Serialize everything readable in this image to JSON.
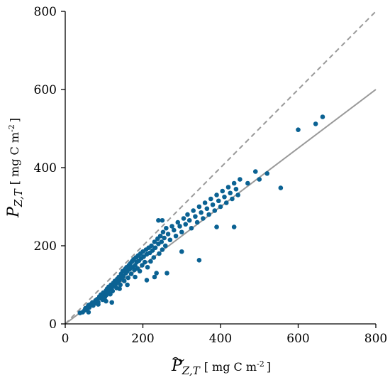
{
  "chart_data": {
    "type": "scatter",
    "title": "",
    "xlabel": {
      "symbol": "P",
      "subscript": "Z,T",
      "unit_prefix": "[ mg C m",
      "unit_sup": "-2",
      "unit_suffix": "]"
    },
    "ylabel": {
      "symbol": "P",
      "subscript": "Z,T",
      "unit_prefix": "[ mg C m",
      "unit_sup": "-2",
      "unit_suffix": "]"
    },
    "xlim": [
      0,
      800
    ],
    "ylim": [
      0,
      800
    ],
    "xticks": [
      "0",
      "200",
      "400",
      "600",
      "800"
    ],
    "yticks": [
      "0",
      "200",
      "400",
      "600",
      "800"
    ],
    "grid": false,
    "colors": {
      "points": "#0b6293",
      "one_to_one": "#999999",
      "fit": "#999999",
      "axis": "#000000"
    },
    "reference_lines": [
      {
        "kind": "one-to-one",
        "style": "dashed",
        "x": [
          0,
          800
        ],
        "y": [
          0,
          800
        ]
      },
      {
        "kind": "regression",
        "style": "solid",
        "x": [
          0,
          800
        ],
        "y": [
          0,
          600
        ]
      }
    ],
    "points": [
      [
        38,
        28
      ],
      [
        45,
        30
      ],
      [
        50,
        35
      ],
      [
        52,
        40
      ],
      [
        55,
        38
      ],
      [
        58,
        44
      ],
      [
        60,
        48
      ],
      [
        62,
        42
      ],
      [
        65,
        50
      ],
      [
        70,
        55
      ],
      [
        72,
        47
      ],
      [
        75,
        52
      ],
      [
        78,
        60
      ],
      [
        80,
        58
      ],
      [
        82,
        63
      ],
      [
        85,
        55
      ],
      [
        88,
        70
      ],
      [
        90,
        66
      ],
      [
        92,
        75
      ],
      [
        95,
        72
      ],
      [
        96,
        62
      ],
      [
        98,
        80
      ],
      [
        100,
        78
      ],
      [
        102,
        68
      ],
      [
        105,
        85
      ],
      [
        106,
        74
      ],
      [
        108,
        90
      ],
      [
        110,
        82
      ],
      [
        112,
        95
      ],
      [
        115,
        88
      ],
      [
        116,
        76
      ],
      [
        118,
        100
      ],
      [
        120,
        92
      ],
      [
        122,
        84
      ],
      [
        124,
        105
      ],
      [
        126,
        98
      ],
      [
        128,
        110
      ],
      [
        130,
        102
      ],
      [
        132,
        92
      ],
      [
        134,
        115
      ],
      [
        136,
        108
      ],
      [
        138,
        120
      ],
      [
        140,
        112
      ],
      [
        142,
        100
      ],
      [
        144,
        128
      ],
      [
        146,
        118
      ],
      [
        148,
        135
      ],
      [
        150,
        122
      ],
      [
        152,
        110
      ],
      [
        154,
        140
      ],
      [
        156,
        130
      ],
      [
        158,
        145
      ],
      [
        160,
        135
      ],
      [
        162,
        118
      ],
      [
        164,
        150
      ],
      [
        166,
        140
      ],
      [
        168,
        155
      ],
      [
        170,
        128
      ],
      [
        172,
        160
      ],
      [
        174,
        145
      ],
      [
        176,
        165
      ],
      [
        178,
        138
      ],
      [
        180,
        150
      ],
      [
        182,
        170
      ],
      [
        184,
        158
      ],
      [
        186,
        142
      ],
      [
        188,
        175
      ],
      [
        190,
        162
      ],
      [
        192,
        135
      ],
      [
        194,
        180
      ],
      [
        196,
        168
      ],
      [
        198,
        150
      ],
      [
        200,
        185
      ],
      [
        202,
        172
      ],
      [
        205,
        158
      ],
      [
        208,
        190
      ],
      [
        210,
        178
      ],
      [
        212,
        145
      ],
      [
        215,
        195
      ],
      [
        218,
        182
      ],
      [
        220,
        160
      ],
      [
        222,
        200
      ],
      [
        225,
        188
      ],
      [
        228,
        170
      ],
      [
        230,
        210
      ],
      [
        232,
        195
      ],
      [
        235,
        130
      ],
      [
        238,
        218
      ],
      [
        240,
        205
      ],
      [
        242,
        180
      ],
      [
        245,
        225
      ],
      [
        248,
        210
      ],
      [
        250,
        190
      ],
      [
        252,
        235
      ],
      [
        255,
        220
      ],
      [
        258,
        200
      ],
      [
        260,
        245
      ],
      [
        265,
        230
      ],
      [
        270,
        215
      ],
      [
        275,
        250
      ],
      [
        280,
        240
      ],
      [
        285,
        225
      ],
      [
        290,
        260
      ],
      [
        295,
        250
      ],
      [
        300,
        235
      ],
      [
        305,
        270
      ],
      [
        310,
        255
      ],
      [
        315,
        280
      ],
      [
        320,
        265
      ],
      [
        325,
        245
      ],
      [
        330,
        290
      ],
      [
        335,
        275
      ],
      [
        340,
        260
      ],
      [
        345,
        300
      ],
      [
        350,
        285
      ],
      [
        355,
        270
      ],
      [
        360,
        310
      ],
      [
        365,
        295
      ],
      [
        370,
        280
      ],
      [
        375,
        320
      ],
      [
        380,
        305
      ],
      [
        385,
        290
      ],
      [
        390,
        330
      ],
      [
        395,
        315
      ],
      [
        400,
        300
      ],
      [
        405,
        340
      ],
      [
        410,
        325
      ],
      [
        415,
        310
      ],
      [
        420,
        350
      ],
      [
        425,
        335
      ],
      [
        430,
        320
      ],
      [
        435,
        360
      ],
      [
        440,
        345
      ],
      [
        445,
        330
      ],
      [
        450,
        370
      ],
      [
        470,
        360
      ],
      [
        490,
        390
      ],
      [
        500,
        370
      ],
      [
        520,
        385
      ],
      [
        555,
        348
      ],
      [
        600,
        497
      ],
      [
        645,
        512
      ],
      [
        663,
        530
      ],
      [
        345,
        163
      ],
      [
        390,
        248
      ],
      [
        435,
        248
      ],
      [
        300,
        185
      ],
      [
        262,
        130
      ],
      [
        180,
        120
      ],
      [
        105,
        58
      ],
      [
        120,
        55
      ],
      [
        85,
        50
      ],
      [
        60,
        30
      ],
      [
        140,
        90
      ],
      [
        160,
        100
      ],
      [
        210,
        112
      ],
      [
        230,
        120
      ],
      [
        240,
        265
      ],
      [
        250,
        265
      ]
    ]
  }
}
